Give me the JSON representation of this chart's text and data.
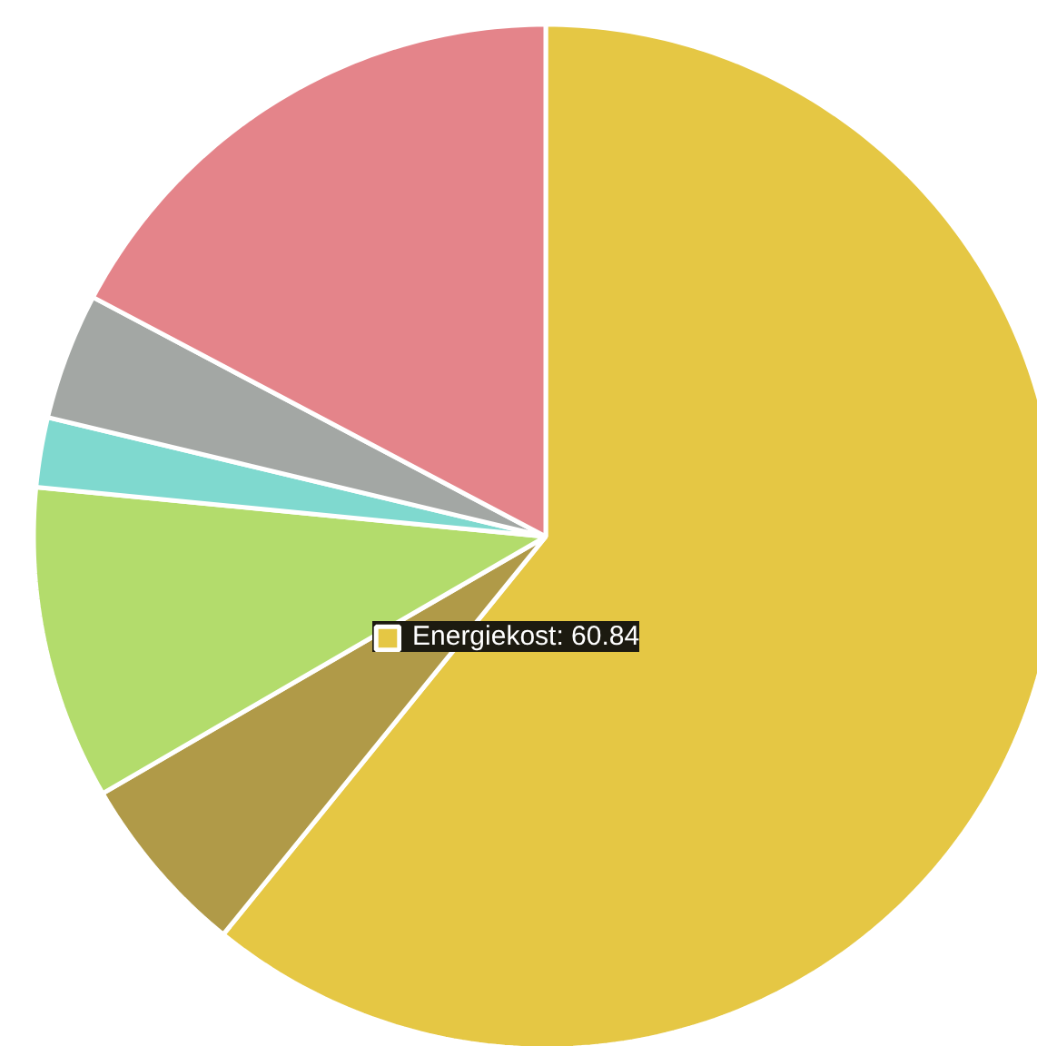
{
  "chart_data": {
    "type": "pie",
    "categories": [
      "Energiekost",
      null,
      null,
      null,
      null,
      null
    ],
    "values": [
      60.84,
      5.8,
      9.9,
      2.2,
      4.0,
      17.26
    ],
    "value_labels": [
      "60.84",
      null,
      null,
      null,
      null,
      null
    ],
    "colors": [
      "#e5c744",
      "#b09a48",
      "#b3dc6c",
      "#7fd9cf",
      "#a3a7a4",
      "#e4848a"
    ]
  }
}
